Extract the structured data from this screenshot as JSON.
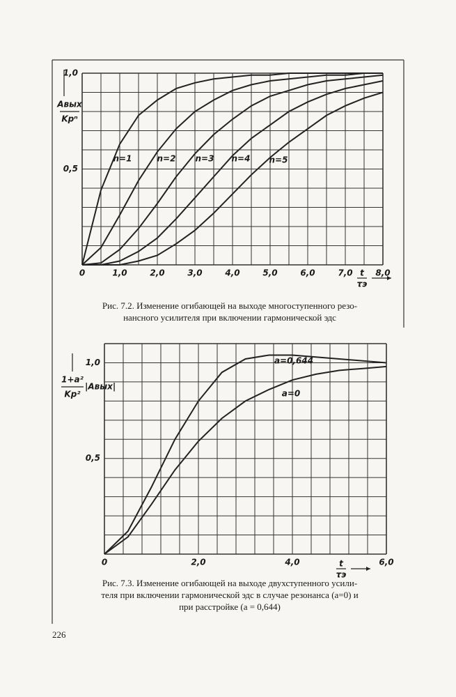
{
  "chart_data": [
    {
      "type": "line",
      "y_label_numerator": "Aвых",
      "y_label_denominator": "Kpⁿ",
      "x_label_numerator": "t",
      "x_label_denominator": "τэ",
      "x": [
        0,
        0.5,
        1,
        1.5,
        2,
        2.5,
        3,
        3.5,
        4,
        4.5,
        5,
        5.5,
        6,
        6.5,
        7,
        7.5,
        8
      ],
      "series": [
        {
          "name": "n=1",
          "color": "#222",
          "values": [
            0,
            0.39,
            0.63,
            0.78,
            0.86,
            0.92,
            0.95,
            0.97,
            0.98,
            0.99,
            0.99,
            1.0,
            1.0,
            1.0,
            1.0,
            1.0,
            1.0
          ]
        },
        {
          "name": "n=2",
          "color": "#222",
          "values": [
            0,
            0.09,
            0.26,
            0.44,
            0.59,
            0.71,
            0.8,
            0.86,
            0.91,
            0.94,
            0.96,
            0.97,
            0.98,
            0.99,
            0.99,
            1.0,
            1.0
          ]
        },
        {
          "name": "n=3",
          "color": "#222",
          "values": [
            0,
            0.01,
            0.08,
            0.19,
            0.32,
            0.46,
            0.58,
            0.68,
            0.76,
            0.83,
            0.88,
            0.91,
            0.94,
            0.96,
            0.97,
            0.98,
            0.99
          ]
        },
        {
          "name": "n=4",
          "color": "#222",
          "values": [
            0,
            0.0,
            0.02,
            0.07,
            0.14,
            0.24,
            0.35,
            0.46,
            0.57,
            0.66,
            0.73,
            0.8,
            0.85,
            0.89,
            0.92,
            0.94,
            0.96
          ]
        },
        {
          "name": "n=5",
          "color": "#222",
          "values": [
            0,
            0.0,
            0.0,
            0.02,
            0.05,
            0.11,
            0.18,
            0.27,
            0.37,
            0.47,
            0.56,
            0.64,
            0.71,
            0.78,
            0.83,
            0.87,
            0.9
          ]
        }
      ],
      "xlim": [
        0,
        8
      ],
      "ylim": [
        0,
        1.0
      ],
      "xticks": [
        0,
        {
          "value": 1,
          "label": "1,0"
        },
        {
          "value": 2,
          "label": "2,0"
        },
        {
          "value": 3,
          "label": "3,0"
        },
        {
          "value": 4,
          "label": "4,0"
        },
        {
          "value": 5,
          "label": "5,0"
        },
        {
          "value": 6,
          "label": "6,0"
        },
        {
          "value": 7,
          "label": "7,0"
        },
        {
          "value": 8,
          "label": "8,0"
        }
      ],
      "yticks": [
        {
          "value": 0.5,
          "label": "0,5"
        },
        {
          "value": 1.0,
          "label": "1,0"
        }
      ],
      "xgrid": [
        0,
        0.5,
        1,
        1.5,
        2,
        2.5,
        3,
        3.5,
        4,
        4.5,
        5,
        5.5,
        6,
        6.5,
        7,
        7.5,
        8
      ],
      "ygrid": [
        0,
        0.1,
        0.2,
        0.3,
        0.4,
        0.5,
        0.6,
        0.7,
        0.8,
        0.9,
        1.0
      ],
      "caption": [
        "Рис. 7.2. Изменение огибающей на выходе многоступенного резо-",
        "нансного усилителя при включении гармонической эдс"
      ]
    },
    {
      "type": "line",
      "y_label_numerator": "1+a²",
      "y_label_denominator": "Kp²",
      "y_label_abs": "|Aвых|",
      "x_label_numerator": "t",
      "x_label_denominator": "τэ",
      "x": [
        0,
        0.5,
        1,
        1.5,
        2,
        2.5,
        3,
        3.5,
        4,
        4.5,
        5,
        5.5,
        6
      ],
      "series": [
        {
          "name": "a=0,644",
          "color": "#222",
          "values": [
            0,
            0.12,
            0.35,
            0.6,
            0.8,
            0.95,
            1.02,
            1.04,
            1.04,
            1.03,
            1.02,
            1.01,
            1.0
          ]
        },
        {
          "name": "a=0",
          "color": "#222",
          "values": [
            0,
            0.09,
            0.26,
            0.44,
            0.59,
            0.71,
            0.8,
            0.86,
            0.91,
            0.94,
            0.96,
            0.97,
            0.98
          ]
        }
      ],
      "xlim": [
        0,
        6
      ],
      "ylim": [
        0,
        1.1
      ],
      "xticks": [
        0,
        {
          "value": 2,
          "label": "2,0"
        },
        {
          "value": 4,
          "label": "4,0"
        },
        {
          "value": 6,
          "label": "6,0"
        }
      ],
      "yticks": [
        {
          "value": 0.5,
          "label": "0,5"
        },
        {
          "value": 1.0,
          "label": "1,0"
        }
      ],
      "xgrid": [
        0,
        0.4,
        0.8,
        1.2,
        1.6,
        2.0,
        2.4,
        2.8,
        3.2,
        3.6,
        4.0,
        4.4,
        4.8,
        5.2,
        5.6,
        6.0
      ],
      "ygrid": [
        0,
        0.1,
        0.2,
        0.3,
        0.4,
        0.5,
        0.6,
        0.7,
        0.8,
        0.9,
        1.0,
        1.1
      ],
      "caption": [
        "Рис. 7.3. Изменение огибающей на выходе двухступенного усили-",
        "теля при включении гармонической эдс в случае резонанса (a=0) и",
        "при расстройке (a = 0,644)"
      ]
    }
  ],
  "page_number": "226"
}
